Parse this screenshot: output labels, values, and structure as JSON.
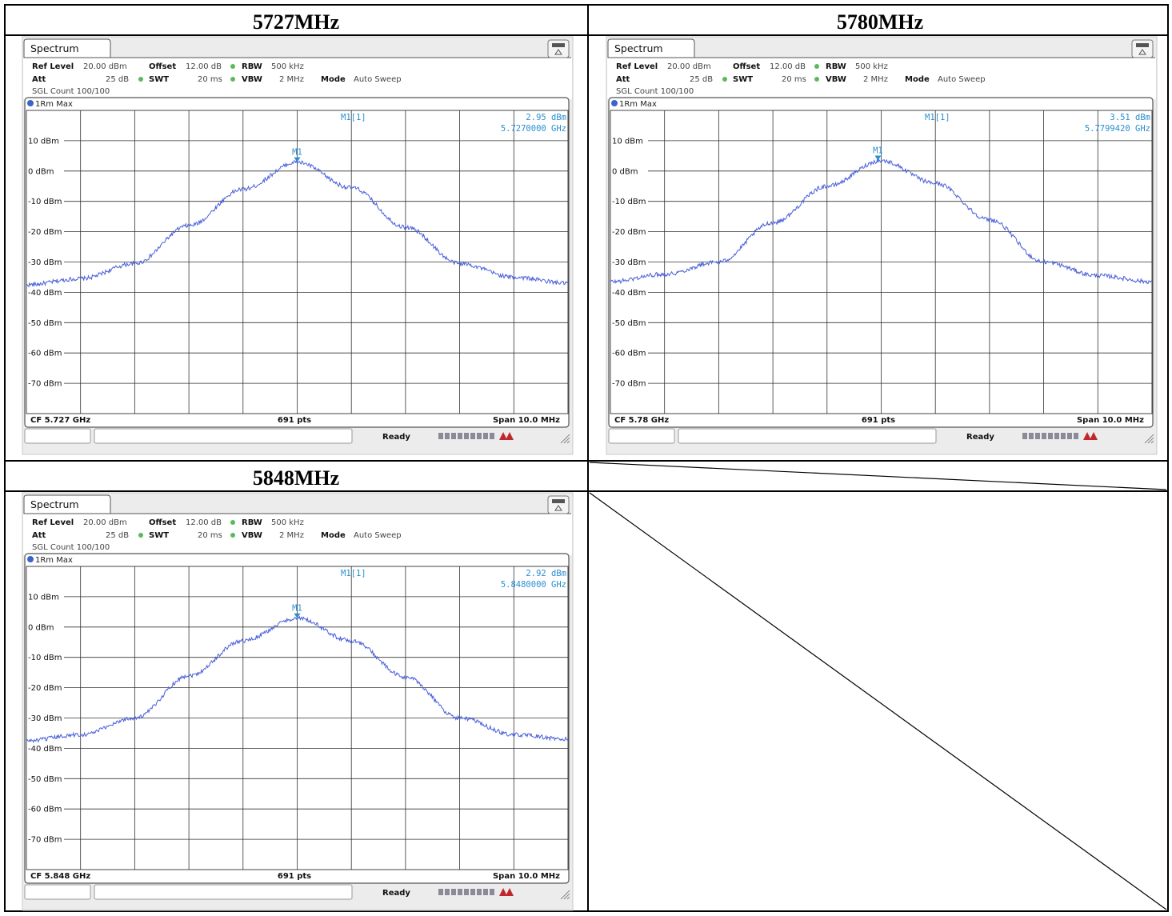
{
  "panels": [
    {
      "cell_title": "5727MHz",
      "tab": "Spectrum",
      "params": {
        "ref_level_label": "Ref Level",
        "ref_level_value": "20.00 dBm",
        "offset_label": "Offset",
        "offset_value": "12.00 dB",
        "rbw_label": "RBW",
        "rbw_value": "500 kHz",
        "att_label": "Att",
        "att_value": "25 dB",
        "swt_label": "SWT",
        "swt_value": "20 ms",
        "vbw_label": "VBW",
        "vbw_value": "2 MHz",
        "mode_label": "Mode",
        "mode_value": "Auto Sweep",
        "sgl_count": "SGL Count 100/100"
      },
      "trace_label": "1Rm Max",
      "marker_name": "M1[1]",
      "marker_level": "2.95 dBm",
      "marker_freq": "5.7270000 GHz",
      "marker_tag": "M1",
      "footer_cf": "CF 5.727 GHz",
      "footer_pts": "691 pts",
      "footer_span": "Span 10.0 MHz",
      "status": "Ready"
    },
    {
      "cell_title": "5780MHz",
      "tab": "Spectrum",
      "params": {
        "ref_level_label": "Ref Level",
        "ref_level_value": "20.00 dBm",
        "offset_label": "Offset",
        "offset_value": "12.00 dB",
        "rbw_label": "RBW",
        "rbw_value": "500 kHz",
        "att_label": "Att",
        "att_value": "25 dB",
        "swt_label": "SWT",
        "swt_value": "20 ms",
        "vbw_label": "VBW",
        "vbw_value": "2 MHz",
        "mode_label": "Mode",
        "mode_value": "Auto Sweep",
        "sgl_count": "SGL Count 100/100"
      },
      "trace_label": "1Rm Max",
      "marker_name": "M1[1]",
      "marker_level": "3.51 dBm",
      "marker_freq": "5.7799420 GHz",
      "marker_tag": "M1",
      "footer_cf": "CF 5.78 GHz",
      "footer_pts": "691 pts",
      "footer_span": "Span 10.0 MHz",
      "status": "Ready"
    },
    {
      "cell_title": "5848MHz",
      "tab": "Spectrum",
      "params": {
        "ref_level_label": "Ref Level",
        "ref_level_value": "20.00 dBm",
        "offset_label": "Offset",
        "offset_value": "12.00 dB",
        "rbw_label": "RBW",
        "rbw_value": "500 kHz",
        "att_label": "Att",
        "att_value": "25 dB",
        "swt_label": "SWT",
        "swt_value": "20 ms",
        "vbw_label": "VBW",
        "vbw_value": "2 MHz",
        "mode_label": "Mode",
        "mode_value": "Auto Sweep",
        "sgl_count": "SGL Count 100/100"
      },
      "trace_label": "1Rm Max",
      "marker_name": "M1[1]",
      "marker_level": "2.92 dBm",
      "marker_freq": "5.8480000 GHz",
      "marker_tag": "M1",
      "footer_cf": "CF 5.848 GHz",
      "footer_pts": "691 pts",
      "footer_span": "Span 10.0 MHz",
      "status": "Ready"
    }
  ],
  "chart_data": [
    {
      "type": "line",
      "xlabel": "",
      "ylabel": "",
      "y_tick_labels": [
        "10 dBm",
        "0 dBm",
        "-10 dBm",
        "-20 dBm",
        "-30 dBm",
        "-40 dBm",
        "-50 dBm",
        "-60 dBm",
        "-70 dBm"
      ],
      "y_ticks": [
        10,
        0,
        -10,
        -20,
        -30,
        -40,
        -50,
        -60,
        -70
      ],
      "ylim": [
        -80,
        20
      ],
      "xlim_mhz": [
        -5,
        5
      ],
      "x_offset_mhz": [
        -5,
        -4,
        -3,
        -2,
        -1,
        0,
        1,
        2,
        3,
        4,
        5
      ],
      "y_dbm": [
        -37.5,
        -35.5,
        -30.5,
        -18,
        -6,
        2.9,
        -5.5,
        -18.5,
        -30.5,
        -35,
        -37
      ],
      "marker": {
        "x_offset_mhz": 0.0,
        "y_dbm": 2.95
      },
      "grid": true
    },
    {
      "type": "line",
      "xlabel": "",
      "ylabel": "",
      "y_tick_labels": [
        "10 dBm",
        "0 dBm",
        "-10 dBm",
        "-20 dBm",
        "-30 dBm",
        "-40 dBm",
        "-50 dBm",
        "-60 dBm",
        "-70 dBm"
      ],
      "y_ticks": [
        10,
        0,
        -10,
        -20,
        -30,
        -40,
        -50,
        -60,
        -70
      ],
      "ylim": [
        -80,
        20
      ],
      "xlim_mhz": [
        -5,
        5
      ],
      "x_offset_mhz": [
        -5,
        -4,
        -3,
        -2,
        -1,
        0,
        1,
        2,
        3,
        4,
        5
      ],
      "y_dbm": [
        -36.5,
        -34,
        -30,
        -17,
        -5,
        3.4,
        -4,
        -16,
        -30,
        -34.5,
        -36.5
      ],
      "marker": {
        "x_offset_mhz": -0.06,
        "y_dbm": 3.51
      },
      "grid": true
    },
    {
      "type": "line",
      "xlabel": "",
      "ylabel": "",
      "y_tick_labels": [
        "10 dBm",
        "0 dBm",
        "-10 dBm",
        "-20 dBm",
        "-30 dBm",
        "-40 dBm",
        "-50 dBm",
        "-60 dBm",
        "-70 dBm"
      ],
      "y_ticks": [
        10,
        0,
        -10,
        -20,
        -30,
        -40,
        -50,
        -60,
        -70
      ],
      "ylim": [
        -80,
        20
      ],
      "xlim_mhz": [
        -5,
        5
      ],
      "x_offset_mhz": [
        -5,
        -4,
        -3,
        -2,
        -1,
        0,
        1,
        2,
        3,
        4,
        5
      ],
      "y_dbm": [
        -37.5,
        -35.5,
        -30,
        -16,
        -4.5,
        2.9,
        -4.5,
        -16.5,
        -30,
        -35.5,
        -37
      ],
      "marker": {
        "x_offset_mhz": 0.0,
        "y_dbm": 2.92
      },
      "grid": true
    }
  ],
  "colors": {
    "trace": "#4a5fd8",
    "marker": "#2a8fd0",
    "status_bar": "#8a8a98",
    "status_logo": "#c0282e"
  },
  "icons": {
    "tab_icon": "instrument-tab-icon",
    "resize_grip": "resize-grip-icon"
  }
}
